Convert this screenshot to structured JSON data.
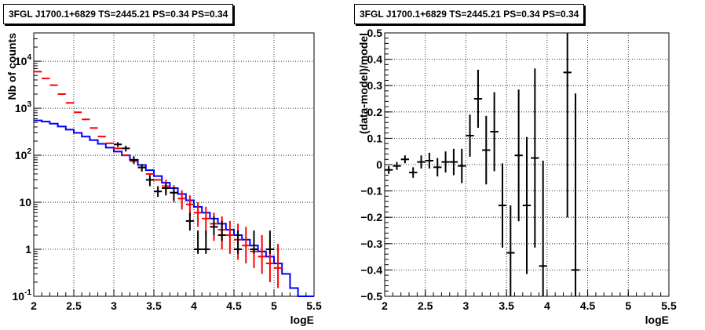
{
  "chart_data": [
    {
      "type": "line",
      "title": "3FGL J1700.1+6829 TS=2445.21 PS=0.34 PS=0.34",
      "xlabel": "logE",
      "ylabel": "Nb of counts",
      "xlim": [
        2,
        5.5
      ],
      "ylim": [
        0.1,
        40000
      ],
      "yscale": "log",
      "grid": true,
      "x_ticks": [
        "2",
        "2.5",
        "3",
        "3.5",
        "4",
        "4.5",
        "5",
        "5.5"
      ],
      "y_ticks": [
        "10^-1",
        "1",
        "10",
        "10^2",
        "10^3",
        "10^4"
      ],
      "bin_edges": [
        2.0,
        2.1,
        2.2,
        2.3,
        2.4,
        2.5,
        2.6,
        2.7,
        2.8,
        2.9,
        3.0,
        3.1,
        3.2,
        3.3,
        3.4,
        3.5,
        3.6,
        3.7,
        3.8,
        3.9,
        4.0,
        4.1,
        4.2,
        4.3,
        4.4,
        4.5,
        4.6,
        4.7,
        4.8,
        4.9,
        5.0,
        5.1,
        5.2,
        5.3,
        5.4,
        5.5
      ],
      "series": [
        {
          "color": "#0000ff",
          "style": "step",
          "values": [
            550,
            520,
            470,
            410,
            350,
            300,
            250,
            210,
            175,
            145,
            120,
            100,
            80,
            62,
            48,
            36,
            26,
            20,
            15,
            11,
            8,
            6,
            4.5,
            3.5,
            2.6,
            2,
            1.6,
            1.2,
            0.9,
            0.7,
            0.5,
            0.3,
            0.15,
            0.1,
            0.1
          ]
        },
        {
          "color": "#ff0000",
          "style": "model-bins",
          "x": [
            2.05,
            2.15,
            2.25,
            2.35,
            2.45,
            2.55,
            2.65,
            2.75,
            2.85,
            2.95,
            3.05,
            3.15,
            3.25,
            3.35,
            3.45,
            3.55,
            3.65,
            3.75,
            3.85,
            3.95,
            4.05,
            4.15,
            4.25,
            4.35,
            4.45,
            4.55,
            4.65,
            4.75,
            4.85,
            4.95,
            5.05
          ],
          "values": [
            6000,
            4300,
            3100,
            2000,
            1300,
            820,
            580,
            380,
            250,
            180,
            140,
            100,
            75,
            55,
            40,
            30,
            22,
            16,
            12,
            9,
            6,
            4.5,
            3.5,
            2.6,
            2,
            1.6,
            1.2,
            0.9,
            0.7,
            0.5,
            0.4
          ],
          "err_low": [
            0,
            0,
            0,
            0,
            0,
            0,
            0,
            0,
            0,
            0,
            0,
            0,
            0,
            0,
            0,
            0,
            15,
            10,
            7,
            5,
            3,
            2,
            1.5,
            1,
            0.8,
            0.6,
            0.5,
            0.4,
            0.3,
            0.2,
            0.15
          ],
          "err_high": [
            0,
            0,
            0,
            0,
            0,
            0,
            0,
            0,
            0,
            0,
            0,
            0,
            0,
            0,
            0,
            0,
            30,
            23,
            18,
            14,
            10,
            8,
            6,
            5,
            4,
            3.5,
            3,
            2.5,
            2,
            1.5,
            1.3
          ]
        },
        {
          "color": "#000000",
          "style": "data-points",
          "x": [
            3.05,
            3.15,
            3.25,
            3.35,
            3.45,
            3.55,
            3.65,
            3.75,
            3.95,
            4.05,
            4.15,
            4.25,
            4.35,
            4.55,
            4.75,
            4.95
          ],
          "values": [
            170,
            140,
            80,
            55,
            30,
            17,
            20,
            16,
            4,
            1,
            1,
            3,
            2,
            1,
            1,
            1
          ],
          "err_low": [
            150,
            120,
            65,
            45,
            22,
            13,
            14,
            11,
            2.5,
            0.8,
            0.8,
            2,
            1.5,
            0.8,
            0.8,
            0.8
          ],
          "err_high": [
            190,
            160,
            95,
            65,
            38,
            22,
            26,
            21,
            6,
            2.5,
            2.5,
            5,
            4,
            2.5,
            2.5,
            2.5
          ]
        }
      ]
    },
    {
      "type": "scatter",
      "title": "3FGL J1700.1+6829 TS=2445.21 PS=0.34 PS=0.34",
      "xlabel": "logE",
      "ylabel": "(data-model)/model",
      "xlim": [
        2,
        5.5
      ],
      "ylim": [
        -0.5,
        0.5
      ],
      "grid": true,
      "x_ticks": [
        "2",
        "2.5",
        "3",
        "3.5",
        "4",
        "4.5",
        "5",
        "5.5"
      ],
      "y_ticks": [
        "-0.5",
        "-0.4",
        "-0.3",
        "-0.2",
        "-0.1",
        "0",
        "0.1",
        "0.2",
        "0.3",
        "0.4",
        "0.5"
      ],
      "series": [
        {
          "color": "#000000",
          "x": [
            2.05,
            2.15,
            2.25,
            2.35,
            2.45,
            2.55,
            2.65,
            2.75,
            2.85,
            2.95,
            3.05,
            3.15,
            3.25,
            3.35,
            3.45,
            3.55,
            3.65,
            3.75,
            3.85,
            3.95,
            4.25,
            4.35
          ],
          "values": [
            -0.02,
            -0.005,
            0.02,
            -0.03,
            0.01,
            0.015,
            -0.01,
            0.01,
            0.01,
            -0.005,
            0.11,
            0.25,
            0.055,
            0.125,
            -0.155,
            -0.335,
            0.035,
            -0.155,
            0.025,
            -0.385,
            0.35,
            -0.4
          ],
          "err": [
            0.015,
            0.015,
            0.015,
            0.02,
            0.025,
            0.03,
            0.035,
            0.04,
            0.05,
            0.065,
            0.08,
            0.11,
            0.13,
            0.15,
            0.16,
            0.18,
            0.25,
            0.26,
            0.34,
            0.4,
            0.55,
            0.67
          ]
        }
      ]
    }
  ]
}
